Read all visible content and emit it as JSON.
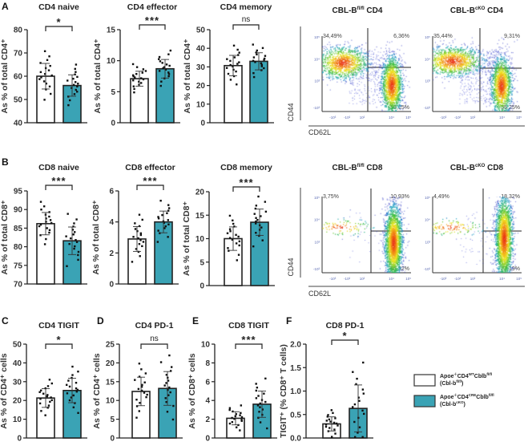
{
  "panel_letters": [
    "A",
    "B",
    "C",
    "D",
    "E",
    "F"
  ],
  "colors": {
    "fl": "#ffffff",
    "cko": "#3aa3b5",
    "axis": "#222222",
    "text": "#333333",
    "flow_tick": "#5a6ab4"
  },
  "chart_data": [
    {
      "type": "bar",
      "title": "CD4 naive",
      "ylabel": "As % of total CD4⁺",
      "ylim": [
        40,
        80
      ],
      "ticks": [
        40,
        50,
        60,
        70,
        80
      ],
      "significance": "*",
      "categories": [
        "Cbl-b fl/fl",
        "Cbl-b cKO"
      ],
      "means": [
        60,
        56
      ],
      "sd": [
        5.5,
        4.6
      ]
    },
    {
      "type": "bar",
      "title": "CD4 effector",
      "ylabel": "As % of total CD4⁺",
      "ylim": [
        0,
        15
      ],
      "ticks": [
        0,
        5,
        10,
        15
      ],
      "significance": "***",
      "categories": [
        "Cbl-b fl/fl",
        "Cbl-b cKO"
      ],
      "means": [
        7.1,
        8.7
      ],
      "sd": [
        1.2,
        1.5
      ]
    },
    {
      "type": "bar",
      "title": "CD4 memory",
      "ylabel": "As % of total CD4⁺",
      "ylim": [
        0,
        50
      ],
      "ticks": [
        0,
        10,
        20,
        30,
        40,
        50
      ],
      "significance": "ns",
      "categories": [
        "Cbl-b fl/fl",
        "Cbl-b cKO"
      ],
      "means": [
        30.7,
        33
      ],
      "sd": [
        5.5,
        4.6
      ]
    },
    {
      "type": "bar",
      "title": "CD8 naive",
      "ylabel": "As % of total CD8⁺",
      "ylim": [
        70,
        95
      ],
      "ticks": [
        70,
        75,
        80,
        85,
        90,
        95
      ],
      "significance": "***",
      "categories": [
        "Cbl-b fl/fl",
        "Cbl-b cKO"
      ],
      "means": [
        86.2,
        81.6
      ],
      "sd": [
        3,
        3.7
      ]
    },
    {
      "type": "bar",
      "title": "CD8 effector",
      "ylabel": "As % of total CD8⁺",
      "ylim": [
        0,
        6
      ],
      "ticks": [
        0,
        2,
        4,
        6
      ],
      "significance": "***",
      "categories": [
        "Cbl-b fl/fl",
        "Cbl-b cKO"
      ],
      "means": [
        2.9,
        4.0
      ],
      "sd": [
        0.8,
        0.7
      ]
    },
    {
      "type": "bar",
      "title": "CD8 memory",
      "ylabel": "As % of total CD8⁺",
      "ylim": [
        0,
        20
      ],
      "ticks": [
        0,
        5,
        10,
        15,
        20
      ],
      "significance": "***",
      "categories": [
        "Cbl-b fl/fl",
        "Cbl-b cKO"
      ],
      "means": [
        10,
        13.5
      ],
      "sd": [
        2.5,
        2.8
      ]
    },
    {
      "type": "bar",
      "title": "CD4 TIGIT",
      "ylabel": "As % of CD4⁺ cells",
      "ylim": [
        0,
        50
      ],
      "ticks": [
        0,
        10,
        20,
        30,
        40,
        50
      ],
      "significance": "*",
      "categories": [
        "Cbl-b fl/fl",
        "Cbl-b cKO"
      ],
      "means": [
        21.3,
        25.3
      ],
      "sd": [
        5,
        6.5
      ]
    },
    {
      "type": "bar",
      "title": "CD4 PD-1",
      "ylabel": "As % of CD4⁺ cells",
      "ylim": [
        0,
        25
      ],
      "ticks": [
        0,
        5,
        10,
        15,
        20,
        25
      ],
      "significance": "ns",
      "categories": [
        "Cbl-b fl/fl",
        "Cbl-b cKO"
      ],
      "means": [
        12.4,
        13.2
      ],
      "sd": [
        3.8,
        4.5
      ]
    },
    {
      "type": "bar",
      "title": "CD8 TIGIT",
      "ylabel": "As % of CD8⁺ cells",
      "ylim": [
        0,
        10
      ],
      "ticks": [
        0,
        2,
        4,
        6,
        8,
        10
      ],
      "significance": "***",
      "categories": [
        "Cbl-b fl/fl",
        "Cbl-b cKO"
      ],
      "means": [
        2.1,
        3.6
      ],
      "sd": [
        0.7,
        1.4
      ]
    },
    {
      "type": "bar",
      "title": "CD8 PD-1",
      "ylabel": "TIGIT⁺ (% CD8⁺ T cells)",
      "ylim": [
        0,
        2
      ],
      "ticks": [
        "0.0",
        "0.5",
        "1.0",
        "1.5",
        "2.0"
      ],
      "significance": "*",
      "categories": [
        "Cbl-b fl/fl",
        "Cbl-b cKO"
      ],
      "means": [
        0.3,
        0.63
      ],
      "sd": [
        0.15,
        0.5
      ]
    }
  ],
  "flow": {
    "y_axis_label": "CD44",
    "x_axis_label": "CD62L",
    "y_ticks": [
      "10⁵",
      "10⁴",
      "10³",
      "-10³"
    ],
    "x_ticks": [
      "-10³",
      "-10²",
      "10²",
      "10⁴",
      "10⁵"
    ],
    "plots": [
      {
        "title_main": "CBL-B",
        "title_sup": "fl/fl",
        "title_rest": " CD4",
        "q_upper_left": "34,49%",
        "q_upper_right": "6,36%",
        "q_lower_right": "59,15%"
      },
      {
        "title_main": "CBL-B",
        "title_sup": "cKO",
        "title_rest": " CD4",
        "q_upper_left": "35,44%",
        "q_upper_right": "9,31%",
        "q_lower_right": "55,25%"
      },
      {
        "title_main": "CBL-B",
        "title_sup": "fl/fl",
        "title_rest": " CD8",
        "q_upper_left": "3,75%",
        "q_upper_right": "10,93%",
        "q_lower_right": "85,32%"
      },
      {
        "title_main": "CBL-B",
        "title_sup": "cKO",
        "title_rest": " CD8",
        "q_upper_left": "4,49%",
        "q_upper_right": "18,32%",
        "q_lower_right": "77,19%"
      }
    ]
  },
  "legend": [
    {
      "main": "Apoe",
      "sup1": "-/-",
      "mid": "CD4",
      "sup2": "WT",
      "end": "Cblb",
      "sup3": "fl/fl",
      "line2": "(Cbl-b",
      "line2_sup": "fl/fl",
      "line2_end": ")"
    },
    {
      "main": "Apoe",
      "sup1": "-/-",
      "mid": "CD4",
      "sup2": "CRE",
      "end": "Cblb",
      "sup3": "fl/fl",
      "line2": "(Cbl-b",
      "line2_sup": "cKO",
      "line2_end": ")"
    }
  ]
}
